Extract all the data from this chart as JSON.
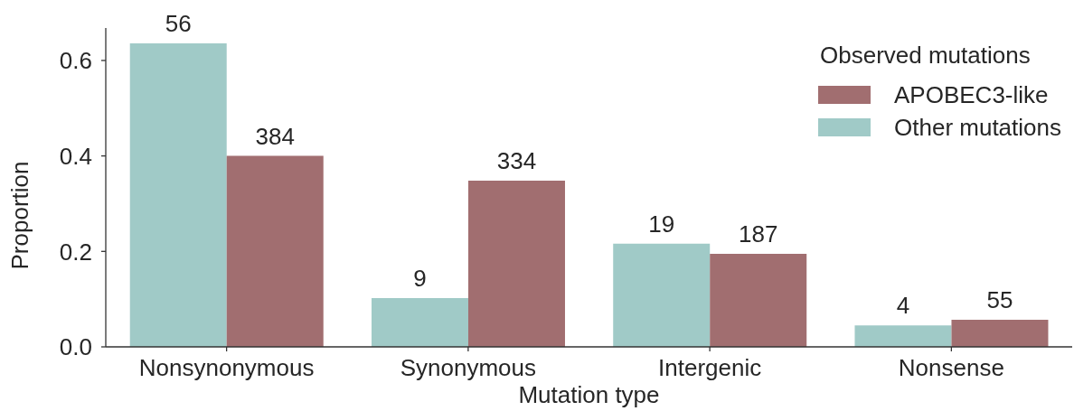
{
  "chart_data": {
    "type": "bar",
    "xlabel": "Mutation type",
    "ylabel": "Proportion",
    "legend_title": "Observed mutations",
    "categories": [
      "Nonsynonymous",
      "Synonymous",
      "Intergenic",
      "Nonsense"
    ],
    "series": [
      {
        "name": "Other mutations",
        "color": "#a0cac7",
        "values": [
          0.636,
          0.102,
          0.216,
          0.045
        ]
      },
      {
        "name": "APOBEC3-like",
        "color": "#a16e70",
        "values": [
          0.4,
          0.348,
          0.195,
          0.057
        ]
      }
    ],
    "annotations": [
      {
        "text": "56",
        "x": "Nonsynonymous",
        "y": 0.636
      },
      {
        "text": "9",
        "x": "Synonymous",
        "y": 0.102
      },
      {
        "text": "19",
        "x": "Intergenic",
        "y": 0.216
      },
      {
        "text": "4",
        "x": "Nonsense",
        "y": 0.045
      },
      {
        "text": "384",
        "x": "Nonsynonymous",
        "y": 0.4
      },
      {
        "text": "334",
        "x": "Synonymous",
        "y": 0.348
      },
      {
        "text": "187",
        "x": "Intergenic",
        "y": 0.195
      },
      {
        "text": "55",
        "x": "Nonsense",
        "y": 0.057
      }
    ],
    "ylim": [
      0,
      0.668
    ],
    "yticks": [
      {
        "value": 0,
        "label": "0.0"
      },
      0.2,
      0.4,
      0.6
    ],
    "legend": "top right"
  }
}
